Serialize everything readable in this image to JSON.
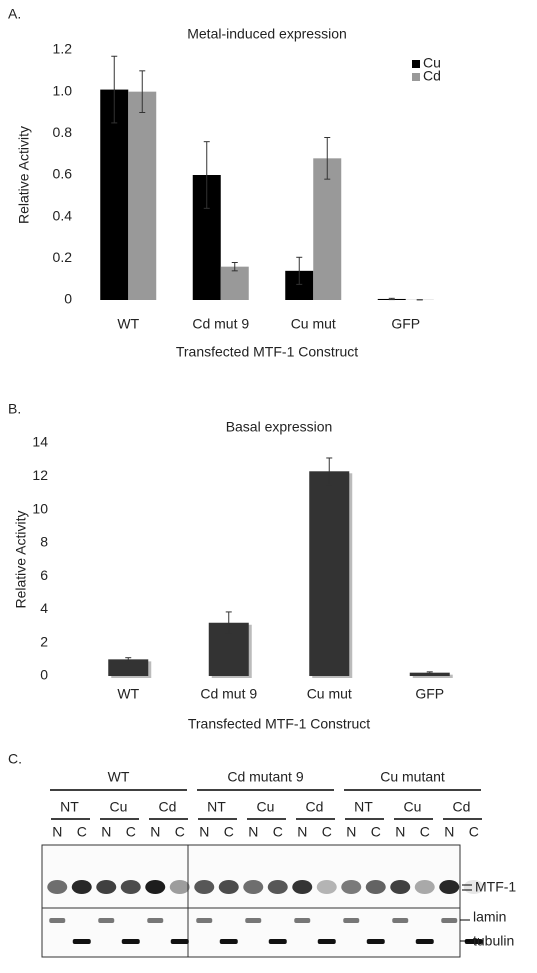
{
  "chart_data": [
    {
      "type": "bar",
      "label": "A.",
      "title": "Metal-induced expression",
      "ylabel": "Relative Activity",
      "xlabel": "Transfected MTF-1 Construct",
      "categories": [
        "WT",
        "Cd mut 9",
        "Cu mut",
        "GFP"
      ],
      "series": [
        {
          "name": "Cu",
          "color": "#000000",
          "values": [
            1.01,
            0.6,
            0.14,
            0.005
          ],
          "errors": [
            0.16,
            0.16,
            0.065,
            0.003
          ]
        },
        {
          "name": "Cd",
          "color": "#999999",
          "values": [
            1.0,
            0.16,
            0.68,
            0.001
          ],
          "errors": [
            0.1,
            0.02,
            0.1,
            0
          ]
        }
      ],
      "ylim": [
        0,
        1.2
      ],
      "yticks": [
        0,
        0.2,
        0.4,
        0.6,
        0.8,
        {
          "value": 1,
          "label": "1.0"
        },
        1.2
      ],
      "legend": "top-right"
    },
    {
      "type": "bar",
      "label": "B.",
      "title": "Basal expression",
      "ylabel": "Relative Activity",
      "xlabel": "Transfected MTF-1 Construct",
      "categories": [
        "WT",
        "Cd mut 9",
        "Cu mut",
        "GFP"
      ],
      "values": [
        1.0,
        3.2,
        12.3,
        0.2
      ],
      "errors": [
        0.1,
        0.65,
        0.8,
        0.05
      ],
      "color": "#333333",
      "ylim": [
        0,
        14
      ],
      "yticks": [
        0,
        2,
        4,
        6,
        8,
        10,
        12,
        14
      ]
    }
  ],
  "blot": {
    "label": "C.",
    "groups": [
      {
        "label": "WT",
        "treatments": [
          "NT",
          "Cu",
          "Cd"
        ]
      },
      {
        "label": "Cd mutant 9",
        "treatments": [
          "NT",
          "Cu",
          "Cd"
        ]
      },
      {
        "label": "Cu mutant",
        "treatments": [
          "NT",
          "Cu",
          "Cd"
        ]
      }
    ],
    "fractions": [
      "N",
      "C"
    ],
    "bands": [
      "MTF-1",
      "lamin",
      "tubulin"
    ]
  }
}
